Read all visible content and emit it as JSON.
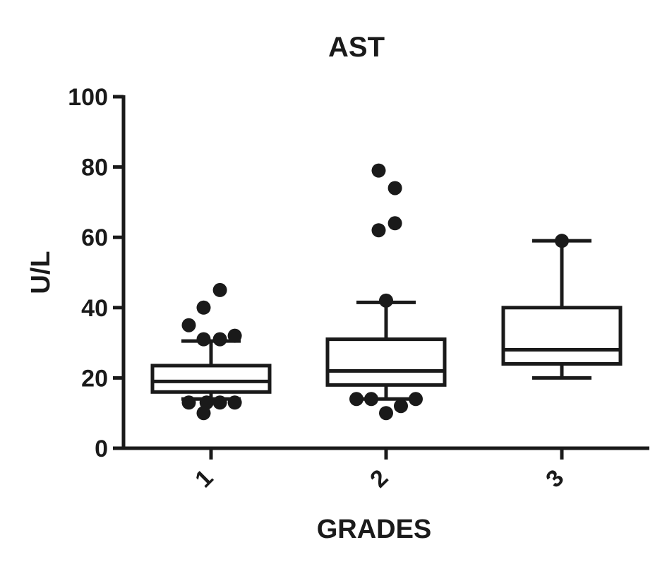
{
  "chart_data": {
    "type": "box",
    "title": "AST",
    "xlabel": "GRADES",
    "ylabel": "U/L",
    "ylim": [
      0,
      100
    ],
    "yticks": [
      0,
      20,
      40,
      60,
      80,
      100
    ],
    "categories": [
      "1",
      "2",
      "3"
    ],
    "boxes": [
      {
        "category": "1",
        "whisker_low": 14,
        "q1": 16,
        "median": 19,
        "q3": 23.5,
        "whisker_high": 30.5,
        "outliers": [
          {
            "value": 45,
            "offset": 0.3
          },
          {
            "value": 40,
            "offset": -0.25
          },
          {
            "value": 35,
            "offset": -0.75
          },
          {
            "value": 32,
            "offset": 0.8
          },
          {
            "value": 31,
            "offset": -0.25
          },
          {
            "value": 31,
            "offset": 0.3
          },
          {
            "value": 13,
            "offset": -0.75
          },
          {
            "value": 13,
            "offset": -0.15
          },
          {
            "value": 13,
            "offset": 0.3
          },
          {
            "value": 13,
            "offset": 0.8
          },
          {
            "value": 10,
            "offset": -0.25
          }
        ]
      },
      {
        "category": "2",
        "whisker_low": 14,
        "q1": 18,
        "median": 22,
        "q3": 31,
        "whisker_high": 41.5,
        "outliers": [
          {
            "value": 79,
            "offset": -0.25
          },
          {
            "value": 74,
            "offset": 0.3
          },
          {
            "value": 64,
            "offset": 0.3
          },
          {
            "value": 62,
            "offset": -0.25
          },
          {
            "value": 42,
            "offset": 0.0
          },
          {
            "value": 14,
            "offset": -1.0
          },
          {
            "value": 14,
            "offset": -0.5
          },
          {
            "value": 14,
            "offset": 1.0
          },
          {
            "value": 12,
            "offset": 0.5
          },
          {
            "value": 10,
            "offset": 0.0
          }
        ]
      },
      {
        "category": "3",
        "whisker_low": 20,
        "q1": 24,
        "median": 28,
        "q3": 40,
        "whisker_high": 59,
        "outliers": [
          {
            "value": 59,
            "offset": 0.0
          }
        ]
      }
    ]
  }
}
